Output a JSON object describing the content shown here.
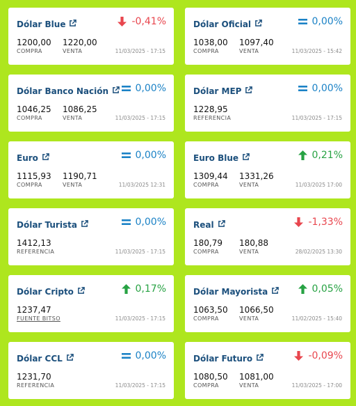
{
  "colors": {
    "background": "#aee61e",
    "title": "#1b4f7c",
    "up": "#27a243",
    "down": "#e8464e",
    "equal": "#1b82c6"
  },
  "cards": [
    {
      "title": "Dólar Blue",
      "trend": "down",
      "change": "-0,41%",
      "v1": "1200,00",
      "l1": "COMPRA",
      "v2": "1220,00",
      "l2": "VENTA",
      "date": "11/03/2025 - 17:15"
    },
    {
      "title": "Dólar Oficial",
      "trend": "eq",
      "change": "0,00%",
      "v1": "1038,00",
      "l1": "COMPRA",
      "v2": "1097,40",
      "l2": "VENTA",
      "date": "11/03/2025 - 15:42"
    },
    {
      "title": "Dólar Banco Nación",
      "trend": "eq",
      "change": "0,00%",
      "v1": "1046,25",
      "l1": "COMPRA",
      "v2": "1086,25",
      "l2": "VENTA",
      "date": "11/03/2025 - 17:15"
    },
    {
      "title": "Dólar MEP",
      "trend": "eq",
      "change": "0,00%",
      "v1": "1228,95",
      "l1": "REFERENCIA",
      "v2": "",
      "l2": "",
      "date": "11/03/2025 - 17:15"
    },
    {
      "title": "Euro",
      "trend": "eq",
      "change": "0,00%",
      "v1": "1115,93",
      "l1": "COMPRA",
      "v2": "1190,71",
      "l2": "VENTA",
      "date": "11/03/2025 12:31"
    },
    {
      "title": "Euro Blue",
      "trend": "up",
      "change": "0,21%",
      "v1": "1309,44",
      "l1": "COMPRA",
      "v2": "1331,26",
      "l2": "VENTA",
      "date": "11/03/2025 17:00"
    },
    {
      "title": "Dólar Turista",
      "trend": "eq",
      "change": "0,00%",
      "v1": "1412,13",
      "l1": "REFERENCIA",
      "v2": "",
      "l2": "",
      "date": "11/03/2025 - 17:15"
    },
    {
      "title": "Real",
      "trend": "down",
      "change": "-1,33%",
      "v1": "180,79",
      "l1": "COMPRA",
      "v2": "180,88",
      "l2": "VENTA",
      "date": "28/02/2025 13:30"
    },
    {
      "title": "Dólar Cripto",
      "trend": "up",
      "change": "0,17%",
      "v1": "1237,47",
      "l1": "FUENTE BITSO",
      "l1_link": true,
      "v2": "",
      "l2": "",
      "date": "11/03/2025 - 17:15"
    },
    {
      "title": "Dólar Mayorista",
      "trend": "up",
      "change": "0,05%",
      "v1": "1063,50",
      "l1": "COMPRA",
      "v2": "1066,50",
      "l2": "VENTA",
      "date": "11/02/2025 - 15:40"
    },
    {
      "title": "Dólar CCL",
      "trend": "eq",
      "change": "0,00%",
      "v1": "1231,70",
      "l1": "REFERENCIA",
      "v2": "",
      "l2": "",
      "date": "11/03/2025 - 17:15"
    },
    {
      "title": "Dólar Futuro",
      "trend": "down",
      "change": "-0,09%",
      "v1": "1080,50",
      "l1": "COMPRA",
      "v2": "1081,00",
      "l2": "VENTA",
      "date": "11/03/2025 - 17:00"
    }
  ]
}
